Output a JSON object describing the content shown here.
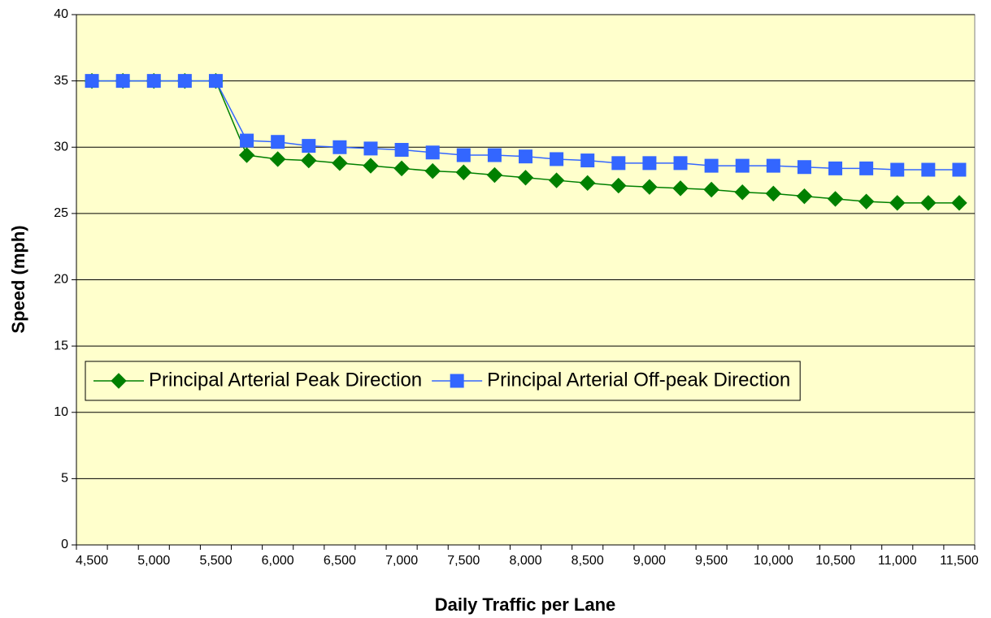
{
  "chart_data": {
    "type": "line",
    "x_label": "Daily Traffic per Lane",
    "y_label": "Speed (mph)",
    "categories": [
      "4,500",
      null,
      "5,000",
      null,
      "5,500",
      null,
      "6,000",
      null,
      "6,500",
      null,
      "7,000",
      null,
      "7,500",
      null,
      "8,000",
      null,
      "8,500",
      null,
      "9,000",
      null,
      "9,500",
      null,
      "10,000",
      null,
      "10,500",
      null,
      "11,000",
      null,
      "11,500"
    ],
    "series": [
      {
        "name": "Principal Arterial Peak Direction",
        "color": "#008000",
        "marker": "diamond",
        "values": [
          35,
          35,
          35,
          35,
          35,
          29.4,
          29.1,
          29.0,
          28.8,
          28.6,
          28.4,
          28.2,
          28.1,
          27.9,
          27.7,
          27.5,
          27.3,
          27.1,
          27.0,
          26.9,
          26.8,
          26.6,
          26.5,
          26.3,
          26.1,
          25.9,
          25.8,
          25.8,
          25.8
        ]
      },
      {
        "name": "Principal Arterial Off-peak Direction",
        "color": "#3366FF",
        "marker": "square",
        "values": [
          35,
          35,
          35,
          35,
          35,
          30.5,
          30.4,
          30.1,
          30.0,
          29.9,
          29.8,
          29.6,
          29.4,
          29.4,
          29.3,
          29.1,
          29.0,
          28.8,
          28.8,
          28.8,
          28.6,
          28.6,
          28.6,
          28.5,
          28.4,
          28.4,
          28.3,
          28.3,
          28.3
        ]
      }
    ],
    "ylim": [
      0,
      40
    ],
    "yticks": [
      0,
      5,
      10,
      15,
      20,
      25,
      30,
      35,
      40
    ],
    "grid": true,
    "plot_background": "#FFFFCC",
    "legend": "inside-lower-left"
  }
}
